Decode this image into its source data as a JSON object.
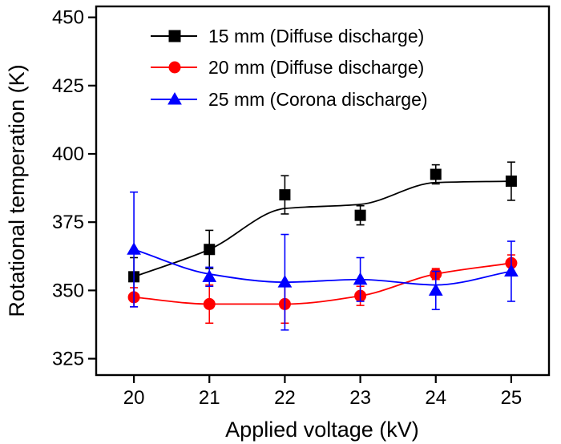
{
  "chart_data": {
    "type": "line",
    "title": "",
    "xlabel": "Applied voltage (kV)",
    "ylabel": "Rotational temperation (K)",
    "x": [
      20,
      21,
      22,
      23,
      24,
      25
    ],
    "x_tick_labels": [
      "20",
      "21",
      "22",
      "23",
      "24",
      "25"
    ],
    "y_tick_labels": [
      "325",
      "350",
      "375",
      "400",
      "425",
      "450"
    ],
    "xlim": [
      19.5,
      25.5
    ],
    "ylim": [
      319,
      454
    ],
    "legend_position": "top-center",
    "grid": false,
    "series": [
      {
        "name": "15 mm (Diffuse discharge)",
        "color": "#000000",
        "marker": "square",
        "values": [
          355,
          365,
          385,
          377.5,
          392.5,
          390
        ],
        "errors": [
          7,
          7,
          7,
          3.5,
          3.5,
          7
        ],
        "smooth_curve": [
          [
            20,
            355
          ],
          [
            21,
            365
          ],
          [
            22,
            380
          ],
          [
            23,
            381.5
          ],
          [
            24,
            389.5
          ],
          [
            25,
            390
          ]
        ]
      },
      {
        "name": "20 mm (Diffuse discharge)",
        "color": "#ff0000",
        "marker": "circle",
        "values": [
          347.5,
          345,
          345,
          348,
          356,
          360
        ],
        "errors": [
          3.5,
          7,
          7,
          3.5,
          2,
          3
        ],
        "smooth_curve": [
          [
            20,
            347.5
          ],
          [
            21,
            345
          ],
          [
            22,
            345
          ],
          [
            23,
            348
          ],
          [
            24,
            356
          ],
          [
            25,
            360
          ]
        ]
      },
      {
        "name": "25 mm (Corona discharge)",
        "color": "#0000ff",
        "marker": "triangle",
        "values": [
          365,
          355,
          353,
          354,
          350,
          357
        ],
        "errors": [
          21,
          3.5,
          17.5,
          8,
          7,
          11
        ],
        "smooth_curve": [
          [
            20,
            365
          ],
          [
            21,
            356
          ],
          [
            22,
            353
          ],
          [
            23,
            354
          ],
          [
            24,
            352
          ],
          [
            25,
            357
          ]
        ]
      }
    ]
  }
}
